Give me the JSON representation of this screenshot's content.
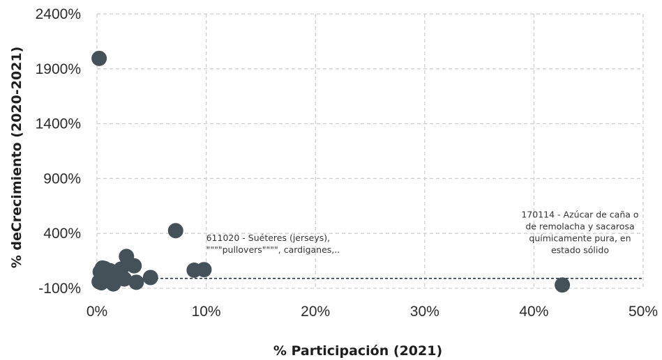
{
  "colors": {
    "point": "#455159",
    "grid": "#cfcfcf",
    "reference_line": "#2f3b4a"
  },
  "chart_data": {
    "type": "scatter",
    "xlabel": "% Participación (2021)",
    "ylabel": "% deCrecimiento (2020-2021)",
    "xlim": [
      0,
      50
    ],
    "ylim": [
      -100,
      2400
    ],
    "x_ticks": [
      0,
      10,
      20,
      30,
      40,
      50
    ],
    "x_tick_labels": [
      "0%",
      "10%",
      "20%",
      "30%",
      "40%",
      "50%"
    ],
    "y_ticks": [
      -100,
      400,
      900,
      1400,
      1900,
      2400
    ],
    "y_tick_labels": [
      "-100%",
      "400%",
      "900%",
      "1400%",
      "1900%",
      "2400%"
    ],
    "grid": true,
    "legend": "none",
    "reference_line_y": -10,
    "points": [
      {
        "x": 0.2,
        "y": 1995
      },
      {
        "x": 7.2,
        "y": 425
      },
      {
        "x": 2.7,
        "y": 190
      },
      {
        "x": 3.4,
        "y": 105
      },
      {
        "x": 0.5,
        "y": 85
      },
      {
        "x": 0.7,
        "y": 80
      },
      {
        "x": 2.2,
        "y": 75
      },
      {
        "x": 1.2,
        "y": 60
      },
      {
        "x": 0.3,
        "y": 50
      },
      {
        "x": 8.9,
        "y": 65
      },
      {
        "x": 9.8,
        "y": 70
      },
      {
        "x": 4.9,
        "y": -2
      },
      {
        "x": 1.8,
        "y": 0
      },
      {
        "x": 2.5,
        "y": -15
      },
      {
        "x": 0.9,
        "y": -30
      },
      {
        "x": 3.6,
        "y": -45
      },
      {
        "x": 0.4,
        "y": -50
      },
      {
        "x": 1.5,
        "y": -60
      },
      {
        "x": 0.2,
        "y": -40
      },
      {
        "x": 42.6,
        "y": -70
      }
    ],
    "annotations": [
      {
        "lines": [
          "611020 - Suéteres (jerseys),",
          "\"\"\"\"pullovers\"\"\"\", cardiganes,.."
        ],
        "x": 10.0,
        "y": 330,
        "align": "start"
      },
      {
        "lines": [
          "170114 - Azúcar de caña o",
          "de remolacha y sacarosa",
          "químicamente pura, en",
          "estado sólido"
        ],
        "x": 49.2,
        "y": 545,
        "align": "end"
      }
    ]
  }
}
